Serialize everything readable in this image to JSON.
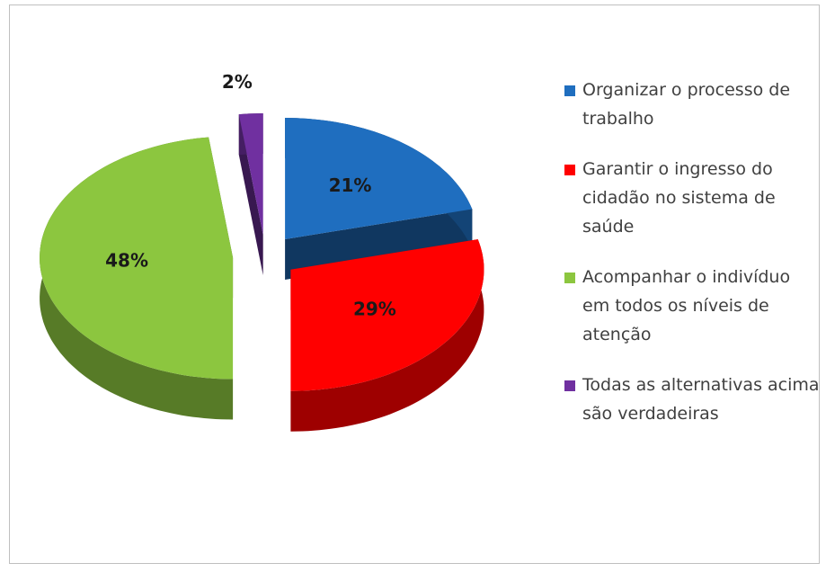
{
  "chart_data": {
    "type": "pie",
    "categories": [
      "Organizar o processo de trabalho",
      "Garantir o ingresso do cidadão no sistema de saúde",
      "Acompanhar o indivíduo em todos os níveis de atenção",
      "Todas as alternativas acima são verdadeiras"
    ],
    "values": [
      21,
      29,
      48,
      2
    ],
    "value_labels": [
      "21%",
      "29%",
      "48%",
      "2%"
    ],
    "colors": [
      "#1f6ebf",
      "#ff0000",
      "#8cc63f",
      "#7030a0"
    ],
    "legend": "right"
  }
}
